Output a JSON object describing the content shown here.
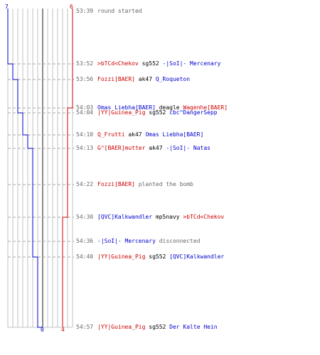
{
  "colors": {
    "team_a": "#0000cc",
    "team_b": "#cc0000",
    "neutral": "#000000",
    "muted": "#666666",
    "grid": "#c0c0c0"
  },
  "scores": {
    "team_a_start": "7",
    "team_b_start": "6",
    "team_a_end": "0",
    "team_b_end": "4"
  },
  "events": [
    {
      "time": "53:39",
      "parts": [
        {
          "text": "round started",
          "team": "muted"
        }
      ]
    },
    {
      "time": "53:52",
      "parts": [
        {
          "text": ">bTCd<Chekov",
          "team": "team_b"
        },
        {
          "text": " sg552 ",
          "team": "neutral"
        },
        {
          "text": "-|SoI|- Mercenary",
          "team": "team_a"
        }
      ]
    },
    {
      "time": "53:56",
      "parts": [
        {
          "text": "Fozzi[BAER]",
          "team": "team_b"
        },
        {
          "text": " ak47 ",
          "team": "neutral"
        },
        {
          "text": "Q_Roqueton",
          "team": "team_a"
        }
      ]
    },
    {
      "time": "54:03",
      "parts": [
        {
          "text": "Omas Liebha[BAER]",
          "team": "team_a"
        },
        {
          "text": " deagle ",
          "team": "neutral"
        },
        {
          "text": "Wagenhe[BAER]",
          "team": "team_b"
        }
      ]
    },
    {
      "time": "54:04",
      "parts": [
        {
          "text": "|YY|Guinea_Pig",
          "team": "team_b"
        },
        {
          "text": " sg552 ",
          "team": "neutral"
        },
        {
          "text": "cbc^DangerSepp",
          "team": "team_a"
        }
      ]
    },
    {
      "time": "54:10",
      "parts": [
        {
          "text": "Q_Frutti",
          "team": "team_b"
        },
        {
          "text": " ak47 ",
          "team": "neutral"
        },
        {
          "text": "Omas Liebha[BAER]",
          "team": "team_a"
        }
      ]
    },
    {
      "time": "54:13",
      "parts": [
        {
          "text": "G^[BAER]mutter",
          "team": "team_b"
        },
        {
          "text": " ak47 ",
          "team": "neutral"
        },
        {
          "text": "-|SoI|- Natas",
          "team": "team_a"
        }
      ]
    },
    {
      "time": "54:22",
      "parts": [
        {
          "text": "Fozzi[BAER]",
          "team": "team_b"
        },
        {
          "text": " planted the bomb",
          "team": "muted"
        }
      ]
    },
    {
      "time": "54:30",
      "parts": [
        {
          "text": "[QVC]Kalkwandler",
          "team": "team_a"
        },
        {
          "text": " mp5navy ",
          "team": "neutral"
        },
        {
          "text": ">bTCd<Chekov",
          "team": "team_b"
        }
      ]
    },
    {
      "time": "54:36",
      "parts": [
        {
          "text": "-|SoI|- Mercenary",
          "team": "team_a"
        },
        {
          "text": " disconnected",
          "team": "muted"
        }
      ]
    },
    {
      "time": "54:40",
      "parts": [
        {
          "text": "|YY|Guinea_Pig",
          "team": "team_b"
        },
        {
          "text": " sg552 ",
          "team": "neutral"
        },
        {
          "text": "[QVC]Kalkwandler",
          "team": "team_a"
        }
      ]
    },
    {
      "time": "54:57",
      "parts": [
        {
          "text": "|YY|Guinea_Pig",
          "team": "team_b"
        },
        {
          "text": " sg552 ",
          "team": "neutral"
        },
        {
          "text": "Der Kalte Hein",
          "team": "team_a"
        }
      ]
    }
  ]
}
